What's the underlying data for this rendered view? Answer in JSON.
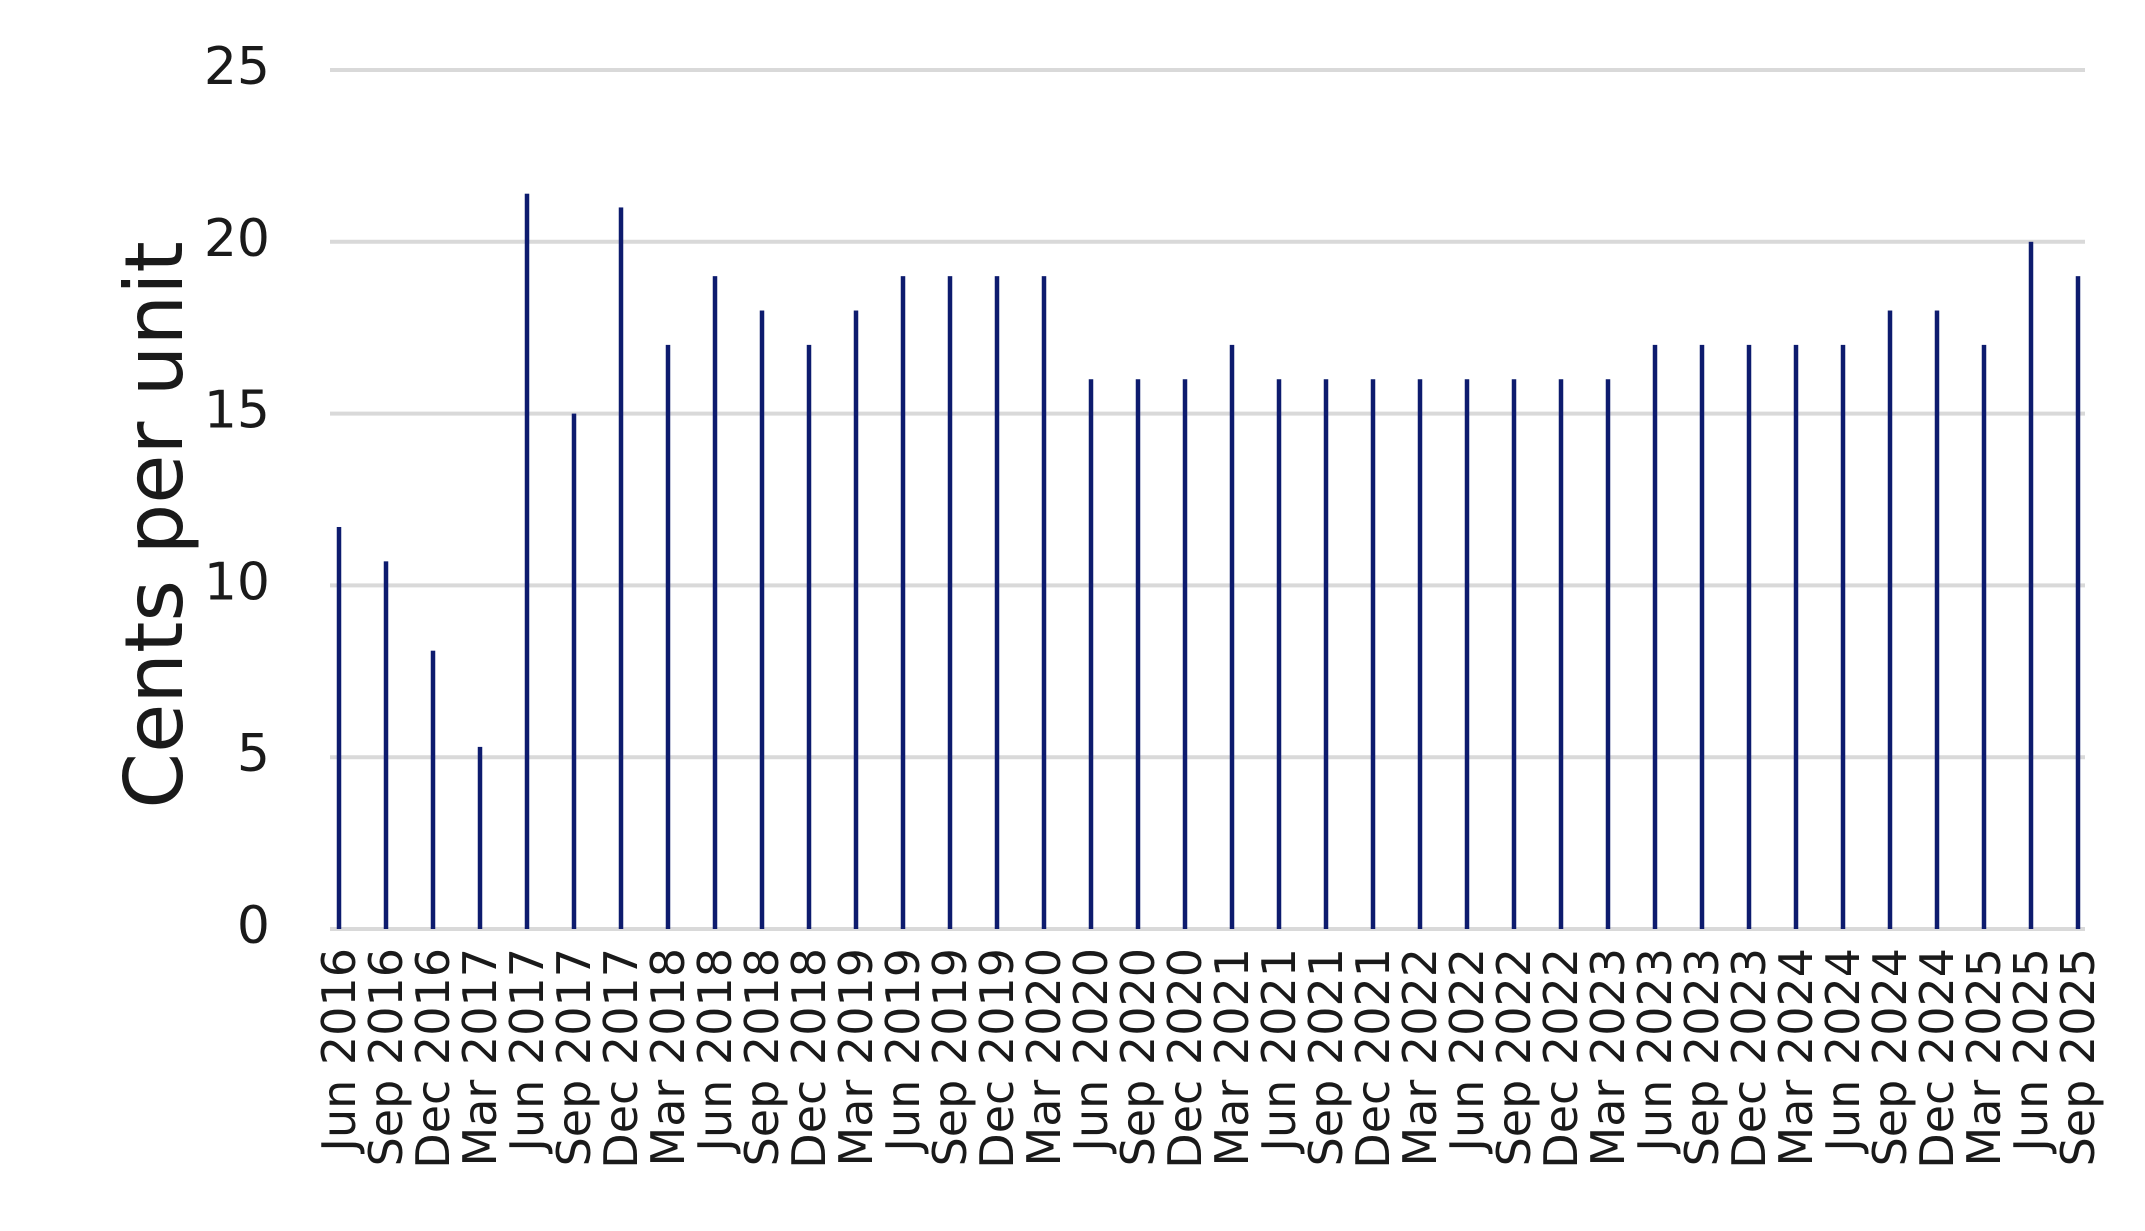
{
  "chart_data": {
    "type": "bar",
    "title": "",
    "xlabel": "",
    "ylabel": "Cents per unit",
    "ylim": [
      0,
      25
    ],
    "yticks": [
      0,
      5,
      10,
      15,
      20,
      25
    ],
    "grid": true,
    "legend": "none",
    "bar_color": "#0d1b6e",
    "grid_color": "#d9d9d9",
    "categories": [
      "Jun 2016",
      "Sep 2016",
      "Dec 2016",
      "Mar 2017",
      "Jun 2017",
      "Sep 2017",
      "Dec 2017",
      "Mar 2018",
      "Jun 2018",
      "Sep 2018",
      "Dec 2018",
      "Mar 2019",
      "Jun 2019",
      "Sep 2019",
      "Dec 2019",
      "Mar 2020",
      "Jun 2020",
      "Sep 2020",
      "Dec 2020",
      "Mar 2021",
      "Jun 2021",
      "Sep 2021",
      "Dec 2021",
      "Mar 2022",
      "Jun 2022",
      "Sep 2022",
      "Dec 2022",
      "Mar 2023",
      "Jun 2023",
      "Sep 2023",
      "Dec 2023",
      "Mar 2024",
      "Jun 2024",
      "Sep 2024",
      "Dec 2024",
      "Mar 2025",
      "Jun 2025",
      "Sep 2025"
    ],
    "values": [
      11.7,
      10.7,
      8.1,
      5.3,
      21.4,
      15,
      21,
      17,
      19,
      18,
      17,
      18,
      19,
      19,
      19,
      19,
      16,
      16,
      16,
      17,
      16,
      16,
      16,
      16,
      16,
      16,
      16,
      16,
      17,
      17,
      17,
      17,
      17,
      18,
      18,
      17,
      20,
      19
    ]
  }
}
